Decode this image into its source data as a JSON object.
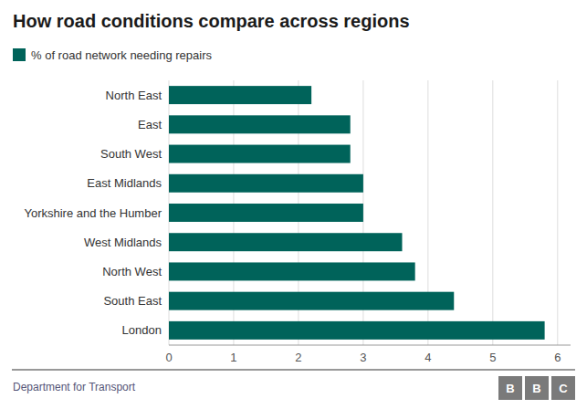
{
  "chart_data": {
    "type": "bar",
    "orientation": "horizontal",
    "title": "How road conditions compare across regions",
    "categories": [
      "London",
      "South East",
      "North West",
      "West Midlands",
      "Yorkshire and the Humber",
      "East Midlands",
      "South West",
      "East",
      "North East"
    ],
    "series": [
      {
        "name": "% of road network needing repairs",
        "color": "#00635A",
        "values": [
          5.8,
          4.4,
          3.8,
          3.6,
          3.0,
          3.0,
          2.8,
          2.8,
          2.2
        ]
      }
    ],
    "xlim": [
      0,
      6.2
    ],
    "xticks": [
      0,
      1,
      2,
      3,
      4,
      5,
      6
    ],
    "grid": true,
    "legend": "top",
    "annotations": [
      "Department for Transport",
      "BBC"
    ]
  }
}
